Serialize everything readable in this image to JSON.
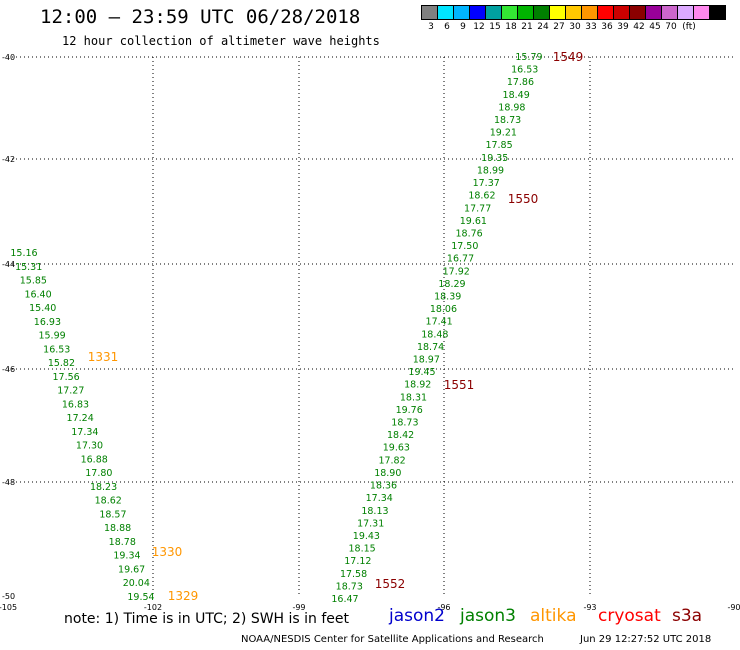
{
  "header": {
    "title": "12:00 – 23:59 UTC 06/28/2018",
    "subtitle": "12 hour collection of altimeter wave heights"
  },
  "legend": {
    "colors": [
      "#808080",
      "#00e5ff",
      "#00b4ff",
      "#0000ff",
      "#00a0a0",
      "#33e633",
      "#00b400",
      "#008000",
      "#ffff00",
      "#ffc800",
      "#ff9600",
      "#ff0000",
      "#cc0000",
      "#8b0000",
      "#990099",
      "#cc66cc",
      "#ddaaff",
      "#ff88ee",
      "#000000"
    ],
    "labels": [
      "3",
      "6",
      "9",
      "12",
      "15",
      "18",
      "21",
      "24",
      "27",
      "30",
      "33",
      "36",
      "39",
      "42",
      "45",
      "70",
      "(ft)"
    ]
  },
  "axes": {
    "lat_labels": [
      "-40",
      "-42",
      "-44",
      "-46",
      "-48",
      "-50"
    ],
    "lon_labels": [
      "-105",
      "-102",
      "-99",
      "-96",
      "-93",
      "-90"
    ]
  },
  "tracks": [
    {
      "name": "jason3-pass-1549-1552",
      "color": "#008000",
      "points": [
        {
          "v": "15.79"
        },
        {
          "v": "16.53"
        },
        {
          "v": "17.86"
        },
        {
          "v": "18.49"
        },
        {
          "v": "18.98"
        },
        {
          "v": "18.73"
        },
        {
          "v": "19.21"
        },
        {
          "v": "17.85"
        },
        {
          "v": "19.35"
        },
        {
          "v": "18.99"
        },
        {
          "v": "17.37"
        },
        {
          "v": "18.62"
        },
        {
          "v": "17.77"
        },
        {
          "v": "19.61"
        },
        {
          "v": "18.76"
        },
        {
          "v": "17.50"
        },
        {
          "v": "16.77"
        },
        {
          "v": "17.92"
        },
        {
          "v": "18.29"
        },
        {
          "v": "18.39"
        },
        {
          "v": "18.06"
        },
        {
          "v": "17.41"
        },
        {
          "v": "18.48"
        },
        {
          "v": "18.74"
        },
        {
          "v": "18.97"
        },
        {
          "v": "19.45"
        },
        {
          "v": "18.92"
        },
        {
          "v": "18.31"
        },
        {
          "v": "19.76"
        },
        {
          "v": "18.73"
        },
        {
          "v": "18.42"
        },
        {
          "v": "19.63"
        },
        {
          "v": "17.82"
        },
        {
          "v": "18.90"
        },
        {
          "v": "18.36"
        },
        {
          "v": "17.34"
        },
        {
          "v": "18.13"
        },
        {
          "v": "17.31"
        },
        {
          "v": "19.43"
        },
        {
          "v": "18.15"
        },
        {
          "v": "17.12"
        },
        {
          "v": "17.58"
        },
        {
          "v": "18.73"
        },
        {
          "v": "16.47"
        }
      ]
    },
    {
      "name": "jason3-pass-1329-1331",
      "color": "#008000",
      "points": [
        {
          "v": "15.16"
        },
        {
          "v": "15.31"
        },
        {
          "v": "15.85"
        },
        {
          "v": "16.40"
        },
        {
          "v": "15.40"
        },
        {
          "v": "16.93"
        },
        {
          "v": "15.99"
        },
        {
          "v": "16.53"
        },
        {
          "v": "15.82"
        },
        {
          "v": "17.56"
        },
        {
          "v": "17.27"
        },
        {
          "v": "16.83"
        },
        {
          "v": "17.24"
        },
        {
          "v": "17.34"
        },
        {
          "v": "17.30"
        },
        {
          "v": "16.88"
        },
        {
          "v": "17.80"
        },
        {
          "v": "18.23"
        },
        {
          "v": "18.62"
        },
        {
          "v": "18.57"
        },
        {
          "v": "18.88"
        },
        {
          "v": "18.78"
        },
        {
          "v": "19.34"
        },
        {
          "v": "19.67"
        },
        {
          "v": "20.04"
        },
        {
          "v": "19.54"
        }
      ]
    }
  ],
  "time_labels": [
    {
      "text": "1549",
      "color": "#8b0000"
    },
    {
      "text": "1550",
      "color": "#8b0000"
    },
    {
      "text": "1551",
      "color": "#8b0000"
    },
    {
      "text": "1552",
      "color": "#8b0000"
    },
    {
      "text": "1331",
      "color": "#ff9600"
    },
    {
      "text": "1330",
      "color": "#ff9600"
    },
    {
      "text": "1329",
      "color": "#ff9600"
    }
  ],
  "note": {
    "text": "note: 1) Time is in UTC; 2) SWH is in feet",
    "satellites": [
      {
        "name": "jason2",
        "color": "#0000cc"
      },
      {
        "name": "jason3",
        "color": "#008000"
      },
      {
        "name": "altika",
        "color": "#ff9600"
      },
      {
        "name": "cryosat",
        "color": "#ff0000"
      },
      {
        "name": "s3a",
        "color": "#8b0000"
      }
    ]
  },
  "footer": {
    "credit": "NOAA/NESDIS Center for Satellite Applications and Research",
    "timestamp": "Jun 29 12:27:52 UTC 2018"
  }
}
